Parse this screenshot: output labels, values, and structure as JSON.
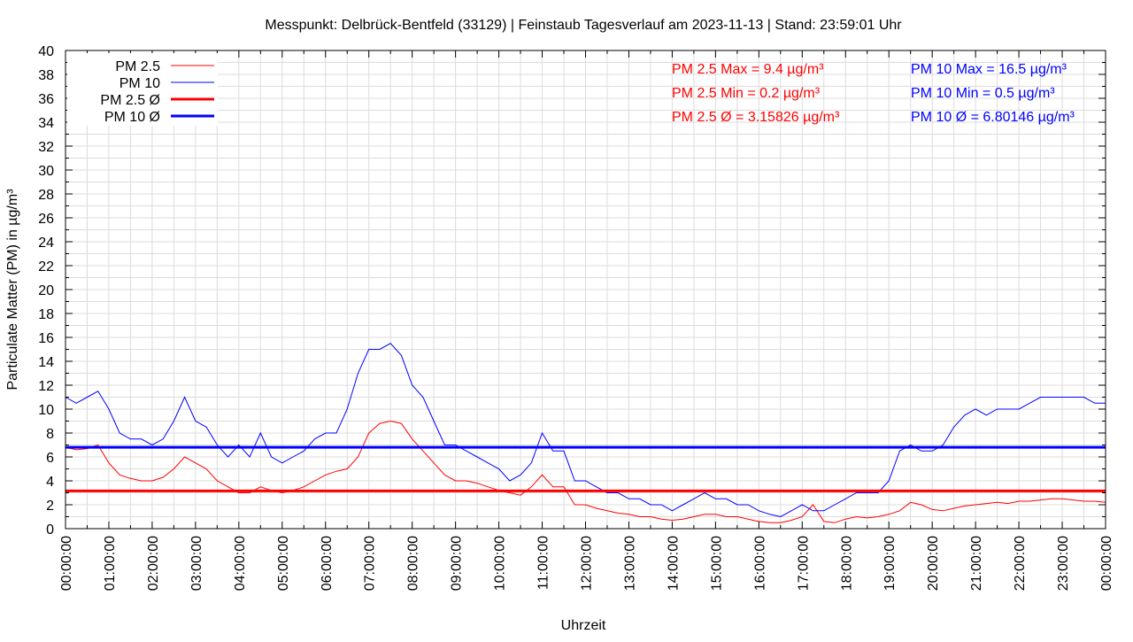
{
  "chart_data": {
    "type": "line",
    "title": "Messpunkt: Delbrück-Bentfeld (33129) | Feinstaub Tagesverlauf am 2023-11-13 | Stand: 23:59:01 Uhr",
    "xlabel": "Uhrzeit",
    "ylabel": "Particulate Matter (PM) in µg/m³",
    "ylim": [
      0,
      40
    ],
    "yticks": [
      0,
      2,
      4,
      6,
      8,
      10,
      12,
      14,
      16,
      18,
      20,
      22,
      24,
      26,
      28,
      30,
      32,
      34,
      36,
      38,
      40
    ],
    "xlim_hours": [
      0,
      24
    ],
    "xtick_labels": [
      "00:00:00",
      "01:00:00",
      "02:00:00",
      "03:00:00",
      "04:00:00",
      "05:00:00",
      "06:00:00",
      "07:00:00",
      "08:00:00",
      "09:00:00",
      "10:00:00",
      "11:00:00",
      "12:00:00",
      "13:00:00",
      "14:00:00",
      "15:00:00",
      "16:00:00",
      "17:00:00",
      "18:00:00",
      "19:00:00",
      "20:00:00",
      "21:00:00",
      "22:00:00",
      "23:00:00",
      "00:00:00"
    ],
    "grid": true,
    "legend_position": "top-left",
    "sample_interval_minutes": 15,
    "series": [
      {
        "name": "PM 2.5",
        "color": "#ff0000",
        "values": [
          6.8,
          6.6,
          6.7,
          7,
          5.5,
          4.5,
          4.2,
          4,
          4,
          4.3,
          5,
          6,
          5.5,
          5,
          4,
          3.5,
          3,
          3,
          3.5,
          3.2,
          3,
          3.2,
          3.5,
          4,
          4.5,
          4.8,
          5,
          6,
          8,
          8.8,
          9,
          8.8,
          7.5,
          6.5,
          5.5,
          4.5,
          4,
          4,
          3.8,
          3.5,
          3.2,
          3,
          2.8,
          3.5,
          4.5,
          3.5,
          3.5,
          2,
          2,
          1.7,
          1.5,
          1.3,
          1.2,
          1,
          1,
          0.8,
          0.7,
          0.8,
          1,
          1.2,
          1.2,
          1,
          1,
          0.8,
          0.6,
          0.5,
          0.5,
          0.7,
          1,
          2,
          0.6,
          0.5,
          0.8,
          1,
          0.9,
          1,
          1.2,
          1.5,
          2.2,
          2,
          1.6,
          1.5,
          1.7,
          1.9,
          2,
          2.1,
          2.2,
          2.1,
          2.3,
          2.3,
          2.4,
          2.5,
          2.5,
          2.4,
          2.3,
          2.3,
          2.2
        ]
      },
      {
        "name": "PM 10",
        "color": "#0000ff",
        "values": [
          11,
          10.5,
          11,
          11.5,
          10,
          8,
          7.5,
          7.5,
          7,
          7.5,
          9,
          11,
          9,
          8.5,
          7,
          6,
          7,
          6,
          8,
          6,
          5.5,
          6,
          6.5,
          7.5,
          8,
          8,
          10,
          13,
          15,
          15,
          15.5,
          14.5,
          12,
          11,
          9,
          7,
          7,
          6.5,
          6,
          5.5,
          5,
          4,
          4.5,
          5.5,
          8,
          6.5,
          6.5,
          4,
          4,
          3.5,
          3,
          3,
          2.5,
          2.5,
          2,
          2,
          1.5,
          2,
          2.5,
          3,
          2.5,
          2.5,
          2,
          2,
          1.5,
          1.2,
          1,
          1.5,
          2,
          1.5,
          1.5,
          2,
          2.5,
          3,
          3,
          3,
          4,
          6.5,
          7,
          6.5,
          6.5,
          7,
          8.5,
          9.5,
          10,
          9.5,
          10,
          10,
          10,
          10.5,
          11,
          11,
          11,
          11,
          11,
          10.5,
          10.5
        ]
      },
      {
        "name": "PM 2.5 Ø",
        "color": "#ff0000",
        "constant": 3.15826
      },
      {
        "name": "PM 10 Ø",
        "color": "#0000ff",
        "constant": 6.80146
      }
    ],
    "annotations": {
      "pm25": [
        "PM 2.5 Max = 9.4 µg/m³",
        "PM 2.5 Min = 0.2 µg/m³",
        "PM 2.5 Ø = 3.15826 µg/m³"
      ],
      "pm10": [
        "PM 10 Max = 16.5 µg/m³",
        "PM 10 Min = 0.5 µg/m³",
        "PM 10 Ø = 6.80146 µg/m³"
      ]
    }
  }
}
